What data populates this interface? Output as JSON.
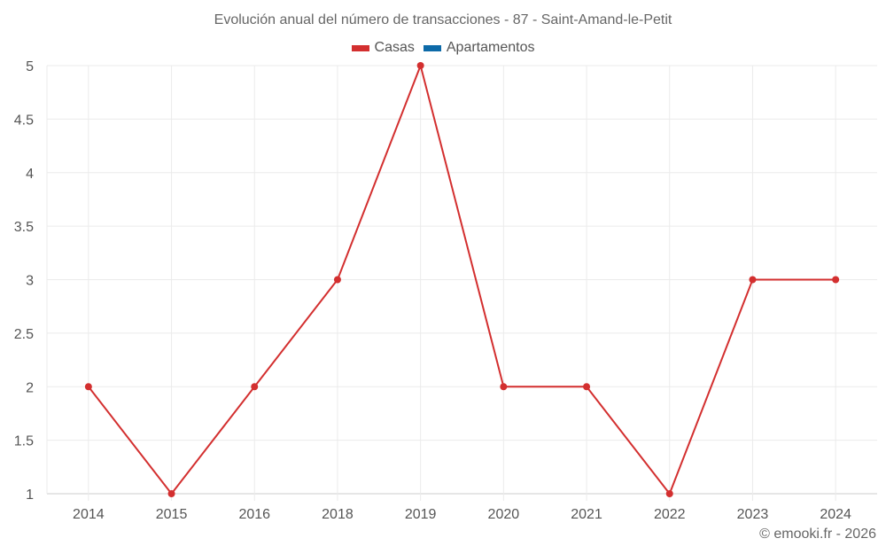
{
  "chart_data": {
    "type": "line",
    "title": "Evolución anual del número de transacciones - 87 - Saint-Amand-le-Petit",
    "categories": [
      "2014",
      "2015",
      "2016",
      "2018",
      "2019",
      "2020",
      "2021",
      "2022",
      "2023",
      "2024"
    ],
    "series": [
      {
        "name": "Casas",
        "color": "#d32f2f",
        "values": [
          2,
          1,
          2,
          3,
          5,
          2,
          2,
          1,
          3,
          3
        ]
      },
      {
        "name": "Apartamentos",
        "color": "#0d6aa8",
        "values": []
      }
    ],
    "xlabel": "",
    "ylabel": "",
    "ylim": [
      1,
      5
    ],
    "yticks": [
      "1",
      "1.5",
      "2",
      "2.5",
      "3",
      "3.5",
      "4",
      "4.5",
      "5"
    ],
    "grid": true,
    "legend_position": "top"
  },
  "header": {
    "title": "Evolución anual del número de transacciones - 87 - Saint-Amand-le-Petit"
  },
  "legend": {
    "items": [
      {
        "label": "Casas",
        "color": "#d32f2f"
      },
      {
        "label": "Apartamentos",
        "color": "#0d6aa8"
      }
    ]
  },
  "footer": {
    "credit": "© emooki.fr - 2026"
  }
}
